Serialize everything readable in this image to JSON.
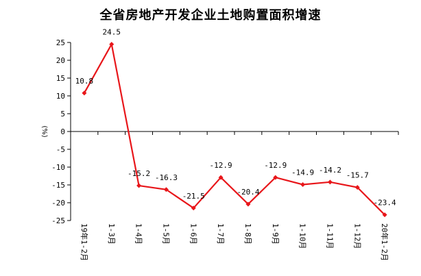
{
  "chart_data": {
    "type": "line",
    "title": "全省房地产开发企业土地购置面积增速",
    "ylabel": "(%)",
    "xlabel": "",
    "ylim": [
      -25,
      25
    ],
    "yticks": [
      25,
      20,
      15,
      10,
      5,
      0,
      -5,
      -10,
      -15,
      -20,
      -25
    ],
    "categories": [
      "19年1-2月",
      "1-3月",
      "1-4月",
      "1-5月",
      "1-6月",
      "1-7月",
      "1-8月",
      "1-9月",
      "1-10月",
      "1-11月",
      "1-12月",
      "20年1-2月"
    ],
    "series": [
      {
        "values": [
          10.8,
          24.5,
          -15.2,
          -16.3,
          -21.5,
          -12.9,
          -20.4,
          -12.9,
          -14.9,
          -14.2,
          -15.7,
          -23.4
        ],
        "color": "#e8161a"
      }
    ],
    "grid": false,
    "legend": "none"
  }
}
